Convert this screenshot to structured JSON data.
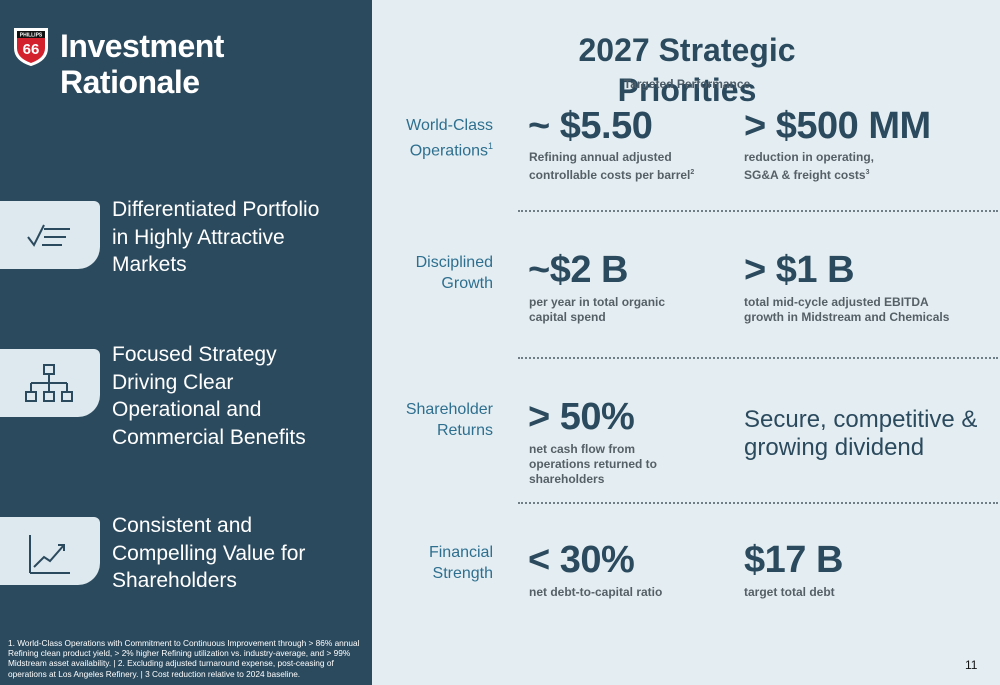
{
  "sidebar": {
    "logo_text": "66",
    "logo_top_text": "PHILLIPS",
    "title_line1": "Investment",
    "title_line2": "Rationale",
    "features": [
      {
        "line1": "Differentiated Portfolio",
        "line2": "in Highly Attractive",
        "line3": "Markets",
        "line4": "",
        "icon": "checklist-icon"
      },
      {
        "line1": "Focused Strategy",
        "line2": "Driving Clear",
        "line3": "Operational and",
        "line4": "Commercial Benefits",
        "icon": "org-chart-icon"
      },
      {
        "line1": "Consistent and",
        "line2": "Compelling Value for",
        "line3": "Shareholders",
        "line4": "",
        "icon": "growth-chart-icon"
      }
    ],
    "footnote": "1. World-Class Operations with Commitment to Continuous Improvement through > 86% annual Refining clean product yield,  > 2% higher Refining utilization vs. industry-average, and > 99% Midstream asset availability. | 2. Excluding adjusted turnaround expense, post-ceasing of operations at Los Angeles Refinery. | 3 Cost reduction relative to 2024 baseline."
  },
  "main": {
    "title": "2027 Strategic Priorities",
    "subtitle": "Targeted Performance",
    "rows": [
      {
        "label_line1": "World-Class",
        "label_line2": "Operations",
        "label_sup": "1",
        "left_big": "~ $5.50",
        "left_desc1": "Refining annual adjusted",
        "left_desc2": "controllable costs per barrel",
        "left_desc_sup": "2",
        "right_big": "> $500 MM",
        "right_desc1": "reduction in operating,",
        "right_desc2": "SG&A & freight costs",
        "right_desc_sup": "3"
      },
      {
        "label_line1": "Disciplined",
        "label_line2": "Growth",
        "left_big": "~$2 B",
        "left_desc1": "per year in total organic",
        "left_desc2": "capital spend",
        "right_big": "> $1 B",
        "right_desc1": "total mid-cycle adjusted EBITDA",
        "right_desc2": "growth in Midstream and Chemicals"
      },
      {
        "label_line1": "Shareholder",
        "label_line2": "Returns",
        "left_big": "> 50%",
        "left_desc1": "net cash flow from",
        "left_desc2": "operations returned to",
        "left_desc3": "shareholders",
        "right_text1": "Secure, competitive &",
        "right_text2": "growing dividend"
      },
      {
        "label_line1": "Financial",
        "label_line2": "Strength",
        "left_big": "< 30%",
        "left_desc1": "net debt-to-capital ratio",
        "right_big": "$17 B",
        "right_desc1": "target total debt"
      }
    ]
  },
  "page_number": "11",
  "colors": {
    "sidebar": "#2c4a5e",
    "main_bg": "#e4eef2",
    "accent_label": "#2e6f8f",
    "logo_red": "#d3212d"
  }
}
